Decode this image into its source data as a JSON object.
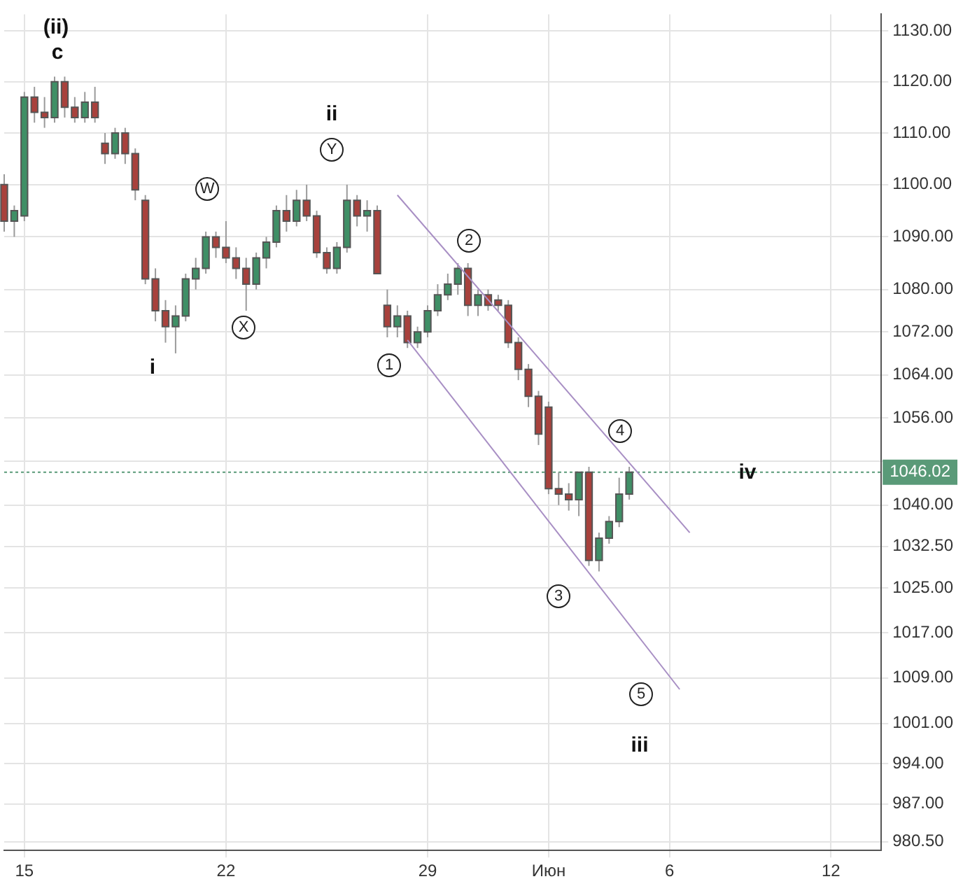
{
  "chart_data": {
    "type": "candlestick",
    "categories": [
      null,
      null,
      "15",
      null,
      null,
      null,
      null,
      null,
      null,
      null,
      null,
      null,
      null,
      null,
      null,
      null,
      null,
      null,
      null,
      null,
      null,
      null,
      "22",
      null,
      null,
      null,
      null,
      null,
      null,
      null,
      null,
      null,
      null,
      null,
      null,
      null,
      null,
      null,
      null,
      null,
      null,
      null,
      "29",
      null,
      null,
      null,
      null,
      null,
      null,
      null,
      null,
      null,
      null,
      null,
      "Июн",
      null,
      null,
      null,
      null,
      null,
      null,
      null,
      null,
      null,
      null,
      null,
      "6",
      null,
      null,
      null,
      null,
      null,
      null,
      null,
      null,
      null,
      null,
      null,
      null,
      null,
      null,
      null,
      "12",
      null,
      null,
      null,
      null,
      null
    ],
    "ohlc": [
      [
        1100,
        1102,
        1091,
        1093
      ],
      [
        1093,
        1096,
        1090,
        1095
      ],
      [
        1094,
        1118,
        1093,
        1117
      ],
      [
        1117,
        1119,
        1112,
        1114
      ],
      [
        1114,
        1117,
        1111,
        1113
      ],
      [
        1113,
        1121,
        1112,
        1120
      ],
      [
        1120,
        1121,
        1113,
        1115
      ],
      [
        1115,
        1117,
        1112,
        1113
      ],
      [
        1113,
        1118,
        1112,
        1116
      ],
      [
        1116,
        1119,
        1112,
        1113
      ],
      [
        1108,
        1110,
        1104,
        1106
      ],
      [
        1106,
        1111,
        1105,
        1110
      ],
      [
        1110,
        1111,
        1104,
        1106
      ],
      [
        1106,
        1107,
        1097,
        1099
      ],
      [
        1097,
        1098,
        1081,
        1082
      ],
      [
        1082,
        1084,
        1074,
        1076
      ],
      [
        1076,
        1078,
        1070,
        1073
      ],
      [
        1073,
        1077,
        1068,
        1075
      ],
      [
        1075,
        1083,
        1074,
        1082
      ],
      [
        1082,
        1086,
        1080,
        1084
      ],
      [
        1084,
        1091,
        1083,
        1090
      ],
      [
        1090,
        1091,
        1086,
        1088
      ],
      [
        1088,
        1093,
        1085,
        1086
      ],
      [
        1086,
        1088,
        1082,
        1084
      ],
      [
        1084,
        1086,
        1076,
        1081
      ],
      [
        1081,
        1087,
        1080,
        1086
      ],
      [
        1086,
        1090,
        1084,
        1089
      ],
      [
        1089,
        1096,
        1088,
        1095
      ],
      [
        1095,
        1098,
        1091,
        1093
      ],
      [
        1093,
        1099,
        1092,
        1097
      ],
      [
        1097,
        1100,
        1093,
        1094
      ],
      [
        1094,
        1095,
        1086,
        1087
      ],
      [
        1087,
        1088,
        1083,
        1084
      ],
      [
        1084,
        1089,
        1083,
        1088
      ],
      [
        1088,
        1100,
        1087,
        1097
      ],
      [
        1097,
        1098,
        1092,
        1094
      ],
      [
        1094,
        1097,
        1091,
        1095
      ],
      [
        1095,
        1096,
        1083,
        1083
      ],
      [
        1077,
        1080,
        1071,
        1073
      ],
      [
        1073,
        1077,
        1071,
        1075
      ],
      [
        1075,
        1076,
        1069,
        1070
      ],
      [
        1070,
        1073,
        1069,
        1072
      ],
      [
        1072,
        1077,
        1071,
        1076
      ],
      [
        1076,
        1081,
        1075,
        1079
      ],
      [
        1079,
        1083,
        1078,
        1081
      ],
      [
        1081,
        1085,
        1079,
        1084
      ],
      [
        1084,
        1085,
        1075,
        1077
      ],
      [
        1077,
        1080,
        1075,
        1079
      ],
      [
        1079,
        1080,
        1076,
        1077
      ],
      [
        1078,
        1079,
        1076,
        1077
      ],
      [
        1077,
        1078,
        1069,
        1070
      ],
      [
        1070,
        1071,
        1063,
        1065
      ],
      [
        1065,
        1066,
        1058,
        1060
      ],
      [
        1060,
        1061,
        1051,
        1053
      ],
      [
        1058,
        1059,
        1042,
        1043
      ],
      [
        1043,
        1046,
        1040,
        1042
      ],
      [
        1042,
        1044,
        1039,
        1041
      ],
      [
        1041,
        1046,
        1038,
        1046
      ],
      [
        1046,
        1047,
        1029,
        1030
      ],
      [
        1030,
        1035,
        1028,
        1034
      ],
      [
        1034,
        1038,
        1033,
        1037
      ],
      [
        1037,
        1045,
        1036,
        1042
      ],
      [
        1042,
        1047,
        1041,
        1046.02
      ],
      null,
      null,
      null,
      null,
      null,
      null,
      null,
      null,
      null,
      null,
      null,
      null,
      null,
      null,
      null,
      null,
      null,
      null,
      null,
      null,
      null,
      null,
      null,
      null,
      null
    ],
    "colors": [
      "#a8413c",
      "#3f8f66",
      "#3f8f66",
      "#a8413c",
      "#a8413c",
      "#3f8f66",
      "#a8413c",
      "#a8413c",
      "#3f8f66",
      "#a8413c",
      "#a8413c",
      "#3f8f66",
      "#a8413c",
      "#a8413c",
      "#a8413c",
      "#a8413c",
      "#a8413c",
      "#3f8f66",
      "#3f8f66",
      "#3f8f66",
      "#3f8f66",
      "#a8413c",
      "#a8413c",
      "#a8413c",
      "#a8413c",
      "#3f8f66",
      "#3f8f66",
      "#3f8f66",
      "#a8413c",
      "#3f8f66",
      "#a8413c",
      "#a8413c",
      "#a8413c",
      "#3f8f66",
      "#3f8f66",
      "#a8413c",
      "#3f8f66",
      "#a8413c",
      "#a8413c",
      "#3f8f66",
      "#a8413c",
      "#3f8f66",
      "#3f8f66",
      "#3f8f66",
      "#3f8f66",
      "#3f8f66",
      "#a8413c",
      "#3f8f66",
      "#a8413c",
      "#a8413c",
      "#a8413c",
      "#a8413c",
      "#a8413c",
      "#a8413c",
      "#a8413c",
      "#a8413c",
      "#a8413c",
      "#3f8f66",
      "#a8413c",
      "#3f8f66",
      "#3f8f66",
      "#3f8f66",
      "#3f8f66",
      null,
      null,
      null,
      null,
      null,
      null,
      null,
      null,
      null,
      null,
      null,
      null,
      null,
      null,
      null,
      null,
      null,
      null,
      null,
      null,
      null,
      null,
      null,
      null,
      null
    ],
    "series": [
      {
        "type": "line",
        "color": "#a88fc4",
        "values": [
          null,
          null,
          null,
          null,
          null,
          null,
          null,
          null,
          null,
          null,
          null,
          null,
          null,
          null,
          null,
          null,
          null,
          null,
          null,
          null,
          null,
          null,
          null,
          null,
          null,
          null,
          null,
          null,
          null,
          null,
          null,
          null,
          null,
          null,
          null,
          null,
          null,
          null,
          null,
          1098,
          null,
          null,
          null,
          null,
          null,
          null,
          null,
          null,
          null,
          null,
          null,
          null,
          null,
          null,
          null,
          null,
          null,
          null,
          null,
          null,
          null,
          null,
          null,
          null,
          null,
          null,
          null,
          null,
          1035,
          null,
          null,
          null,
          null,
          null,
          null,
          null,
          null,
          null,
          null,
          null,
          null,
          null,
          null,
          null,
          null,
          null,
          null,
          null
        ]
      },
      {
        "type": "line",
        "color": "#a88fc4",
        "values": [
          null,
          null,
          null,
          null,
          null,
          null,
          null,
          null,
          null,
          null,
          null,
          null,
          null,
          null,
          null,
          null,
          null,
          null,
          null,
          null,
          null,
          null,
          null,
          null,
          null,
          null,
          null,
          null,
          null,
          null,
          null,
          null,
          null,
          null,
          null,
          null,
          null,
          null,
          null,
          null,
          1070.5,
          null,
          null,
          null,
          null,
          null,
          null,
          null,
          null,
          null,
          null,
          null,
          null,
          null,
          null,
          null,
          null,
          null,
          null,
          null,
          null,
          null,
          null,
          null,
          null,
          null,
          null,
          1007,
          null,
          null,
          null,
          null,
          null,
          null,
          null,
          null,
          null,
          null,
          null,
          null,
          null,
          null,
          null,
          null,
          null,
          null,
          null,
          null
        ]
      }
    ],
    "log": true,
    "ylim": [
      979,
      1133.3
    ],
    "yticks": [
      {
        "value": 980.5,
        "label": "980.50"
      },
      {
        "value": 987,
        "label": "987.00"
      },
      {
        "value": 994,
        "label": "994.00"
      },
      {
        "value": 1001,
        "label": "1001.00"
      },
      {
        "value": 1009,
        "label": "1009.00"
      },
      {
        "value": 1017,
        "label": "1017.00"
      },
      {
        "value": 1025,
        "label": "1025.00"
      },
      {
        "value": 1032.5,
        "label": "1032.50"
      },
      {
        "value": 1040,
        "label": "1040.00"
      },
      {
        "value": 1048,
        "label": null
      },
      {
        "value": 1056,
        "label": "1056.00"
      },
      {
        "value": 1064,
        "label": "1064.00"
      },
      {
        "value": 1072,
        "label": "1072.00"
      },
      {
        "value": 1080,
        "label": "1080.00"
      },
      {
        "value": 1090,
        "label": "1090.00"
      },
      {
        "value": 1100,
        "label": "1100.00"
      },
      {
        "value": 1110,
        "label": "1110.00"
      },
      {
        "value": 1120,
        "label": "1120.00"
      },
      {
        "value": 1130,
        "label": "1130.00"
      }
    ],
    "grid": true,
    "legend": false,
    "ref_lines": [
      {
        "axis": "y",
        "value": 1046.02,
        "label": "1046.02",
        "color": "#5a9a78",
        "line_style": "dotted"
      }
    ],
    "annotations": [
      "(ii)",
      "c",
      "ii",
      "Y",
      "W",
      "X",
      "i",
      "1",
      "2",
      "3",
      "4",
      "5",
      "iii",
      "iv"
    ]
  }
}
